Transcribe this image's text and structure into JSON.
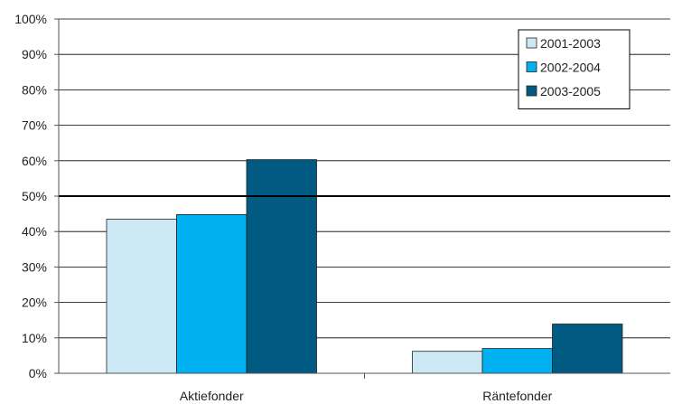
{
  "chart_data": {
    "type": "bar",
    "categories": [
      "Aktiefonder",
      "Räntefonder"
    ],
    "series": [
      {
        "name": "2001-2003",
        "color": "#cde8f5",
        "values": [
          43.5,
          6.2
        ]
      },
      {
        "name": "2002-2004",
        "color": "#00b0f0",
        "values": [
          44.8,
          7.0
        ]
      },
      {
        "name": "2003-2005",
        "color": "#005a82",
        "values": [
          60.3,
          13.9
        ]
      }
    ],
    "ylim": [
      0,
      100
    ],
    "yticks": [
      "0%",
      "10%",
      "20%",
      "30%",
      "40%",
      "50%",
      "60%",
      "70%",
      "80%",
      "90%",
      "100%"
    ],
    "reference_line": 50,
    "grid": true,
    "legend_position": "top-right",
    "title": "",
    "xlabel": "",
    "ylabel": ""
  }
}
